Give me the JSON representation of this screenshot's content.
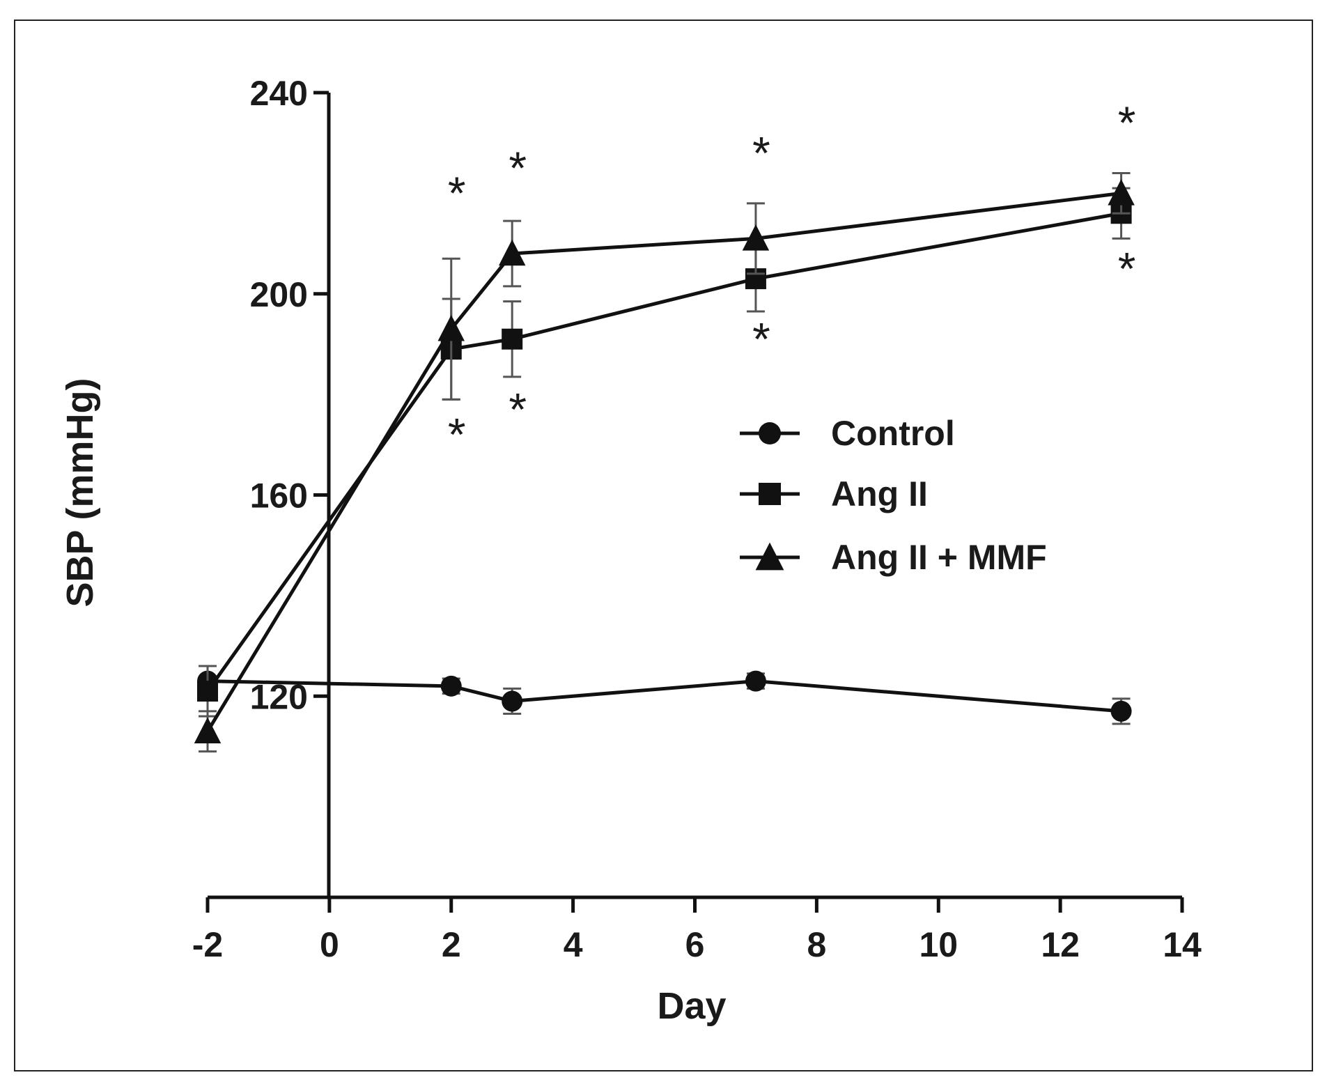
{
  "chart_data": {
    "type": "line",
    "title": "",
    "xlabel": "Day",
    "ylabel": "SBP (mmHg)",
    "xlim": [
      -2,
      14
    ],
    "ylim": [
      80,
      240
    ],
    "xticks": [
      -2,
      0,
      2,
      4,
      6,
      8,
      10,
      12,
      14
    ],
    "yticks": [
      120,
      160,
      200,
      240
    ],
    "grid": false,
    "legend_position": "center-right",
    "significance_marker": "*",
    "series": [
      {
        "name": "Control",
        "marker": "circle",
        "x": [
          -2,
          2,
          3,
          7,
          13
        ],
        "y": [
          123,
          122,
          119,
          123,
          117
        ],
        "err": [
          3,
          1.5,
          2.5,
          1.5,
          2.5
        ],
        "stars": []
      },
      {
        "name": "Ang II",
        "marker": "square",
        "x": [
          -2,
          2,
          3,
          7,
          13
        ],
        "y": [
          121,
          189,
          191,
          203,
          216
        ],
        "err": [
          5,
          10,
          7.5,
          6.5,
          5
        ],
        "stars": [
          {
            "x": 2,
            "y": 173
          },
          {
            "x": 3,
            "y": 178
          },
          {
            "x": 7,
            "y": 192
          },
          {
            "x": 13,
            "y": 206
          }
        ]
      },
      {
        "name": "Ang II + MMF",
        "marker": "triangle",
        "x": [
          -2,
          2,
          3,
          7,
          13
        ],
        "y": [
          113,
          193,
          208,
          211,
          220
        ],
        "err": [
          4,
          14,
          6.5,
          7,
          4
        ],
        "stars": [
          {
            "x": 2,
            "y": 221
          },
          {
            "x": 3,
            "y": 226
          },
          {
            "x": 7,
            "y": 229
          },
          {
            "x": 13,
            "y": 235
          }
        ]
      }
    ]
  }
}
